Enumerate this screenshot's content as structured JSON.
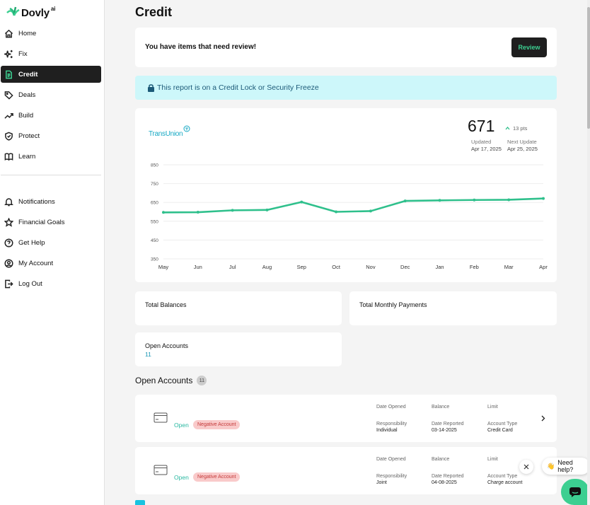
{
  "brand": {
    "name": "Dovly",
    "suffix": "ai",
    "accent": "#3ccf91"
  },
  "nav": {
    "primary": [
      {
        "label": "Home",
        "icon": "home-icon"
      },
      {
        "label": "Fix",
        "icon": "sparkle-icon"
      },
      {
        "label": "Credit",
        "icon": "document-icon",
        "active": true
      },
      {
        "label": "Deals",
        "icon": "tag-icon"
      },
      {
        "label": "Build",
        "icon": "trend-up-icon"
      },
      {
        "label": "Protect",
        "icon": "shield-icon"
      },
      {
        "label": "Learn",
        "icon": "book-icon"
      }
    ],
    "secondary": [
      {
        "label": "Notifications",
        "icon": "bell-icon"
      },
      {
        "label": "Financial Goals",
        "icon": "star-icon"
      },
      {
        "label": "Get Help",
        "icon": "help-circle-icon"
      },
      {
        "label": "My Account",
        "icon": "user-circle-icon"
      },
      {
        "label": "Log Out",
        "icon": "logout-icon"
      }
    ]
  },
  "page": {
    "title": "Credit"
  },
  "review": {
    "text": "You have items that need review!",
    "button": "Review"
  },
  "lock_banner": {
    "text": "This report is on a Credit Lock or Security Freeze"
  },
  "score_card": {
    "bureau": "TransUnion",
    "score": "671",
    "change": "13 pts",
    "updated_label": "Updated",
    "updated_value": "Apr 17, 2025",
    "next_label": "Next Update",
    "next_value": "Apr 25, 2025"
  },
  "chart_data": {
    "type": "line",
    "x": [
      "May",
      "Jun",
      "Jul",
      "Aug",
      "Sep",
      "Oct",
      "Nov",
      "Dec",
      "Jan",
      "Feb",
      "Mar",
      "Apr"
    ],
    "series": [
      {
        "values": [
          597,
          598,
          608,
          610,
          652,
          600,
          604,
          658,
          661,
          663,
          664,
          671
        ],
        "color": "#2fc08c"
      }
    ],
    "yticks": [
      350,
      450,
      550,
      650,
      750,
      850
    ],
    "ylim": [
      350,
      850
    ],
    "grid": true
  },
  "summary": {
    "total_balances_label": "Total Balances",
    "total_monthly_payments_label": "Total Monthly Payments",
    "open_accounts_label": "Open Accounts",
    "open_accounts_value": "11"
  },
  "accounts_section": {
    "title": "Open Accounts",
    "count": "11"
  },
  "accounts": [
    {
      "status": "Open",
      "badge": "Negative Account",
      "date_opened_label": "Date Opened",
      "balance_label": "Balance",
      "limit_label": "Limit",
      "responsibility_label": "Responsibility",
      "responsibility": "Individual",
      "date_reported_label": "Date Reported",
      "date_reported": "03-14-2025",
      "account_type_label": "Account Type",
      "account_type": "Credit Card"
    },
    {
      "status": "Open",
      "badge": "Negative Account",
      "date_opened_label": "Date Opened",
      "balance_label": "Balance",
      "limit_label": "Limit",
      "responsibility_label": "Responsibility",
      "responsibility": "Joint",
      "date_reported_label": "Date Reported",
      "date_reported": "04-08-2025",
      "account_type_label": "Account Type",
      "account_type": "Charge account"
    }
  ],
  "help": {
    "emoji": "👋",
    "text": "Need help?"
  }
}
